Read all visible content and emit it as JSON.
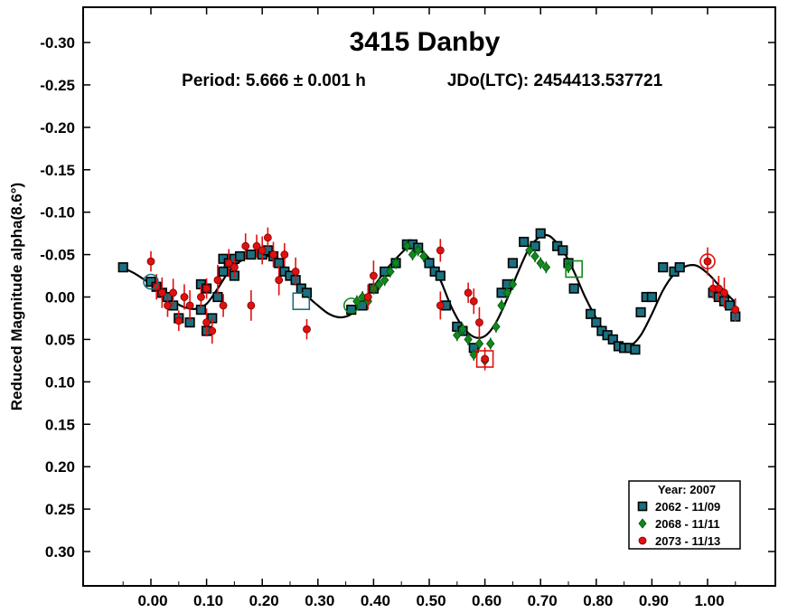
{
  "chart_data": {
    "type": "scatter",
    "title": "3415 Danby",
    "subtitle": {
      "period": "Period: 5.666 ± 0.001 h",
      "epoch": "JDo(LTC): 2454413.537721"
    },
    "xlabel": "",
    "ylabel": "Reduced Magnitude alpha(8.6°)",
    "xlim": [
      -0.12,
      1.12
    ],
    "ylim": [
      -0.35,
      0.35
    ],
    "y_inverted": true,
    "x_ticks": [
      "0.00",
      "0.10",
      "0.20",
      "0.30",
      "0.40",
      "0.50",
      "0.60",
      "0.70",
      "0.80",
      "0.90",
      "1.00"
    ],
    "y_ticks": [
      "-0.30",
      "-0.25",
      "-0.20",
      "-0.15",
      "-0.10",
      "-0.05",
      "0.00",
      "0.05",
      "0.10",
      "0.15",
      "0.20",
      "0.25",
      "0.30"
    ],
    "grid": false,
    "legend": {
      "placement": "bottom-right",
      "title": "Year: 2007",
      "entries": [
        "2062 - 11/09",
        "2068 - 11/11",
        "2073 - 11/13"
      ]
    },
    "fit_curve": {
      "description": "Fourier fit",
      "points": [
        [
          -0.05,
          -0.034
        ],
        [
          -0.03,
          -0.028
        ],
        [
          0.0,
          -0.015
        ],
        [
          0.02,
          -0.005
        ],
        [
          0.04,
          0.005
        ],
        [
          0.06,
          0.012
        ],
        [
          0.08,
          0.014
        ],
        [
          0.1,
          0.008
        ],
        [
          0.12,
          -0.01
        ],
        [
          0.14,
          -0.03
        ],
        [
          0.16,
          -0.042
        ],
        [
          0.18,
          -0.048
        ],
        [
          0.2,
          -0.05
        ],
        [
          0.22,
          -0.045
        ],
        [
          0.24,
          -0.035
        ],
        [
          0.26,
          -0.02
        ],
        [
          0.28,
          -0.002
        ],
        [
          0.3,
          0.01
        ],
        [
          0.32,
          0.02
        ],
        [
          0.34,
          0.024
        ],
        [
          0.36,
          0.02
        ],
        [
          0.38,
          0.005
        ],
        [
          0.4,
          -0.012
        ],
        [
          0.42,
          -0.03
        ],
        [
          0.44,
          -0.045
        ],
        [
          0.46,
          -0.058
        ],
        [
          0.47,
          -0.061
        ],
        [
          0.48,
          -0.058
        ],
        [
          0.5,
          -0.045
        ],
        [
          0.52,
          -0.02
        ],
        [
          0.54,
          0.012
        ],
        [
          0.56,
          0.035
        ],
        [
          0.58,
          0.047
        ],
        [
          0.6,
          0.046
        ],
        [
          0.62,
          0.03
        ],
        [
          0.64,
          0.002
        ],
        [
          0.66,
          -0.03
        ],
        [
          0.68,
          -0.058
        ],
        [
          0.7,
          -0.072
        ],
        [
          0.71,
          -0.073
        ],
        [
          0.72,
          -0.07
        ],
        [
          0.74,
          -0.055
        ],
        [
          0.76,
          -0.03
        ],
        [
          0.78,
          0.0
        ],
        [
          0.8,
          0.025
        ],
        [
          0.82,
          0.046
        ],
        [
          0.84,
          0.057
        ],
        [
          0.86,
          0.058
        ],
        [
          0.88,
          0.045
        ],
        [
          0.9,
          0.02
        ],
        [
          0.92,
          -0.008
        ],
        [
          0.94,
          -0.027
        ],
        [
          0.96,
          -0.036
        ],
        [
          0.98,
          -0.037
        ],
        [
          1.0,
          -0.028
        ],
        [
          1.02,
          -0.014
        ],
        [
          1.04,
          0.0
        ],
        [
          1.05,
          0.006
        ]
      ]
    },
    "series": [
      {
        "name": "2062 - 11/09",
        "marker": "square",
        "color": "#1a7080",
        "points": [
          [
            -0.05,
            -0.035
          ],
          [
            0.0,
            -0.018
          ],
          [
            0.01,
            -0.012
          ],
          [
            0.02,
            -0.005
          ],
          [
            0.03,
            0.0
          ],
          [
            0.04,
            0.01
          ],
          [
            0.05,
            0.025
          ],
          [
            0.07,
            0.03
          ],
          [
            0.09,
            0.015
          ],
          [
            0.09,
            -0.015
          ],
          [
            0.1,
            0.04
          ],
          [
            0.1,
            -0.01
          ],
          [
            0.11,
            0.025
          ],
          [
            0.12,
            0.0
          ],
          [
            0.13,
            -0.03
          ],
          [
            0.13,
            -0.045
          ],
          [
            0.14,
            -0.04
          ],
          [
            0.15,
            -0.025
          ],
          [
            0.15,
            -0.045
          ],
          [
            0.16,
            -0.048
          ],
          [
            0.18,
            -0.05
          ],
          [
            0.2,
            -0.05
          ],
          [
            0.21,
            -0.055
          ],
          [
            0.22,
            -0.048
          ],
          [
            0.23,
            -0.04
          ],
          [
            0.24,
            -0.03
          ],
          [
            0.25,
            -0.025
          ],
          [
            0.26,
            -0.02
          ],
          [
            0.27,
            -0.01
          ],
          [
            0.28,
            -0.005
          ],
          [
            0.36,
            0.015
          ],
          [
            0.38,
            0.01
          ],
          [
            0.4,
            -0.01
          ],
          [
            0.42,
            -0.03
          ],
          [
            0.44,
            -0.04
          ],
          [
            0.46,
            -0.062
          ],
          [
            0.47,
            -0.062
          ],
          [
            0.48,
            -0.058
          ],
          [
            0.5,
            -0.04
          ],
          [
            0.51,
            -0.03
          ],
          [
            0.52,
            -0.025
          ],
          [
            0.53,
            0.01
          ],
          [
            0.55,
            0.035
          ],
          [
            0.56,
            0.04
          ],
          [
            0.58,
            0.06
          ],
          [
            0.63,
            -0.005
          ],
          [
            0.64,
            -0.015
          ],
          [
            0.65,
            -0.04
          ],
          [
            0.67,
            -0.065
          ],
          [
            0.69,
            -0.06
          ],
          [
            0.7,
            -0.075
          ],
          [
            0.73,
            -0.06
          ],
          [
            0.74,
            -0.055
          ],
          [
            0.75,
            -0.04
          ],
          [
            0.76,
            -0.01
          ],
          [
            0.79,
            0.02
          ],
          [
            0.8,
            0.03
          ],
          [
            0.81,
            0.04
          ],
          [
            0.82,
            0.045
          ],
          [
            0.83,
            0.05
          ],
          [
            0.84,
            0.058
          ],
          [
            0.85,
            0.06
          ],
          [
            0.86,
            0.06
          ],
          [
            0.87,
            0.062
          ],
          [
            0.88,
            0.018
          ],
          [
            0.89,
            0.0
          ],
          [
            0.9,
            0.0
          ],
          [
            0.92,
            -0.035
          ],
          [
            0.94,
            -0.03
          ],
          [
            0.95,
            -0.035
          ],
          [
            1.01,
            -0.005
          ],
          [
            1.02,
            0.0
          ],
          [
            1.03,
            0.005
          ],
          [
            1.04,
            0.01
          ],
          [
            1.05,
            0.023
          ]
        ]
      },
      {
        "name": "2068 - 11/11",
        "marker": "diamond",
        "color": "#0e8a1a",
        "points": [
          [
            0.37,
            0.005
          ],
          [
            0.38,
            0.0
          ],
          [
            0.39,
            0.005
          ],
          [
            0.4,
            -0.01
          ],
          [
            0.41,
            -0.015
          ],
          [
            0.42,
            -0.02
          ],
          [
            0.43,
            -0.03
          ],
          [
            0.44,
            -0.04
          ],
          [
            0.46,
            -0.06
          ],
          [
            0.47,
            -0.05
          ],
          [
            0.48,
            -0.055
          ],
          [
            0.49,
            -0.048
          ],
          [
            0.55,
            0.045
          ],
          [
            0.56,
            0.038
          ],
          [
            0.57,
            0.05
          ],
          [
            0.58,
            0.068
          ],
          [
            0.59,
            0.055
          ],
          [
            0.6,
            0.075
          ],
          [
            0.61,
            0.055
          ],
          [
            0.62,
            0.035
          ],
          [
            0.63,
            0.01
          ],
          [
            0.64,
            -0.005
          ],
          [
            0.65,
            -0.015
          ],
          [
            0.68,
            -0.055
          ],
          [
            0.69,
            -0.048
          ],
          [
            0.7,
            -0.04
          ],
          [
            0.71,
            -0.035
          ],
          [
            0.75,
            -0.035
          ]
        ]
      },
      {
        "name": "2073 - 11/13",
        "marker": "circle",
        "color": "#e01010",
        "points": [
          [
            0.0,
            -0.042
          ],
          [
            0.01,
            -0.012
          ],
          [
            0.02,
            -0.005
          ],
          [
            0.03,
            0.01
          ],
          [
            0.04,
            -0.005
          ],
          [
            0.05,
            0.028
          ],
          [
            0.06,
            0.0
          ],
          [
            0.07,
            0.01
          ],
          [
            0.09,
            0.0
          ],
          [
            0.1,
            0.03
          ],
          [
            0.1,
            -0.01
          ],
          [
            0.11,
            0.04
          ],
          [
            0.12,
            -0.02
          ],
          [
            0.13,
            0.01
          ],
          [
            0.14,
            -0.04
          ],
          [
            0.15,
            -0.035
          ],
          [
            0.17,
            -0.06
          ],
          [
            0.18,
            0.01
          ],
          [
            0.19,
            -0.06
          ],
          [
            0.2,
            -0.055
          ],
          [
            0.21,
            -0.07
          ],
          [
            0.22,
            -0.05
          ],
          [
            0.23,
            -0.02
          ],
          [
            0.24,
            -0.05
          ],
          [
            0.26,
            -0.03
          ],
          [
            0.28,
            0.038
          ],
          [
            0.39,
            0.0
          ],
          [
            0.4,
            -0.025
          ],
          [
            0.52,
            -0.055
          ],
          [
            0.52,
            0.01
          ],
          [
            0.57,
            -0.005
          ],
          [
            0.58,
            0.005
          ],
          [
            0.59,
            0.03
          ],
          [
            0.6,
            0.073
          ],
          [
            1.0,
            -0.042
          ],
          [
            1.01,
            -0.01
          ],
          [
            1.02,
            -0.01
          ],
          [
            1.03,
            -0.005
          ],
          [
            1.05,
            0.015
          ]
        ]
      }
    ],
    "highlighted_points": [
      {
        "series": "2062 - 11/09",
        "x": 0.0,
        "y": -0.018,
        "shape": "circle"
      },
      {
        "series": "2062 - 11/09",
        "x": 0.27,
        "y": 0.005,
        "shape": "square"
      },
      {
        "series": "2068 - 11/11",
        "x": 0.36,
        "y": 0.01,
        "shape": "circle"
      },
      {
        "series": "2068 - 11/11",
        "x": 0.76,
        "y": -0.033,
        "shape": "square"
      },
      {
        "series": "2073 - 11/13",
        "x": 0.6,
        "y": 0.073,
        "shape": "square"
      },
      {
        "series": "2073 - 11/13",
        "x": 1.0,
        "y": -0.042,
        "shape": "circle"
      }
    ]
  }
}
